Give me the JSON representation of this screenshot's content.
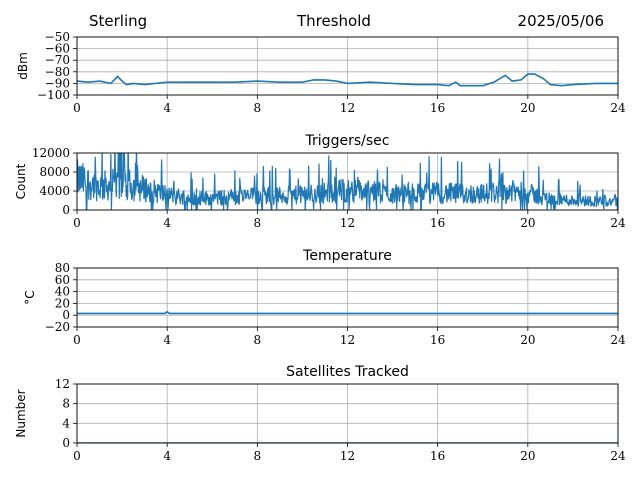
{
  "header": {
    "left": "Sterling",
    "center": "Threshold",
    "right": "2025/05/06"
  },
  "chart_data": [
    {
      "type": "line",
      "title": "",
      "ylabel": "dBm",
      "xlim": [
        0,
        24
      ],
      "ylim": [
        -100,
        -50
      ],
      "xticks": [
        0,
        4,
        8,
        12,
        16,
        20,
        24
      ],
      "xticklabels": [
        "0",
        "4",
        "8",
        "12",
        "16",
        "20",
        "24"
      ],
      "yticks": [
        -50,
        -60,
        -70,
        -80,
        -90,
        -100
      ],
      "yticklabels": [
        "−50",
        "−60",
        "−70",
        "−80",
        "−90",
        "−100"
      ],
      "grid": true,
      "color": "#1f77b4",
      "x": [
        0,
        0.5,
        1,
        1.5,
        1.8,
        2,
        2.2,
        2.5,
        3,
        4,
        5,
        6,
        7,
        8,
        9,
        10,
        10.5,
        11,
        11.5,
        12,
        13,
        14,
        15,
        16,
        16.5,
        16.8,
        17,
        17.5,
        18,
        18.5,
        19,
        19.3,
        19.7,
        20,
        20.3,
        20.7,
        21,
        21.5,
        22,
        23,
        24
      ],
      "y": [
        -88,
        -89,
        -88,
        -90,
        -84,
        -88,
        -91,
        -90,
        -91,
        -89,
        -89,
        -89,
        -89,
        -88,
        -89,
        -89,
        -87,
        -87,
        -88,
        -90,
        -89,
        -90,
        -91,
        -91,
        -92,
        -89,
        -92,
        -92,
        -92,
        -89,
        -83,
        -88,
        -87,
        -82,
        -82,
        -86,
        -91,
        -92,
        -91,
        -90,
        -90
      ]
    },
    {
      "type": "line",
      "title": "Triggers/sec",
      "ylabel": "Count",
      "xlim": [
        0,
        24
      ],
      "ylim": [
        0,
        12000
      ],
      "xticks": [
        0,
        4,
        8,
        12,
        16,
        20,
        24
      ],
      "xticklabels": [
        "0",
        "4",
        "8",
        "12",
        "16",
        "20",
        "24"
      ],
      "yticks": [
        0,
        4000,
        8000,
        12000
      ],
      "yticklabels": [
        "0",
        "4000",
        "8000",
        "12000"
      ],
      "grid": true,
      "color": "#1f77b4",
      "trend": {
        "x": [
          0,
          1,
          2,
          3,
          4,
          5,
          6,
          7,
          8,
          9,
          10,
          11,
          12,
          13,
          14,
          15,
          16,
          17,
          18,
          19,
          20,
          21,
          22,
          23,
          24
        ],
        "y": [
          6500,
          5000,
          5500,
          4500,
          3200,
          2600,
          2500,
          2700,
          3000,
          3000,
          3200,
          3600,
          4200,
          3800,
          3400,
          3500,
          3600,
          3400,
          3400,
          4000,
          3500,
          2300,
          2000,
          1900,
          1800
        ]
      }
    },
    {
      "type": "line",
      "title": "Temperature",
      "ylabel": "°C",
      "xlim": [
        0,
        24
      ],
      "ylim": [
        -20,
        80
      ],
      "xticks": [
        0,
        4,
        8,
        12,
        16,
        20,
        24
      ],
      "xticklabels": [
        "0",
        "4",
        "8",
        "12",
        "16",
        "20",
        "24"
      ],
      "yticks": [
        -20,
        0,
        20,
        40,
        60,
        80
      ],
      "yticklabels": [
        "−20",
        "0",
        "20",
        "40",
        "60",
        "80"
      ],
      "grid": true,
      "color": "#1f77b4",
      "x": [
        0,
        3.9,
        4.0,
        4.1,
        24
      ],
      "y": [
        3,
        3,
        6,
        3,
        3
      ]
    },
    {
      "type": "line",
      "title": "Satellites Tracked",
      "ylabel": "Number",
      "xlim": [
        0,
        24
      ],
      "ylim": [
        0,
        12
      ],
      "xticks": [
        0,
        4,
        8,
        12,
        16,
        20,
        24
      ],
      "xticklabels": [
        "0",
        "4",
        "8",
        "12",
        "16",
        "20",
        "24"
      ],
      "yticks": [
        0,
        4,
        8,
        12
      ],
      "yticklabels": [
        "0",
        "4",
        "8",
        "12"
      ],
      "grid": true,
      "color": "#1f77b4",
      "x": [
        0,
        24
      ],
      "y": [
        0,
        0
      ]
    }
  ]
}
